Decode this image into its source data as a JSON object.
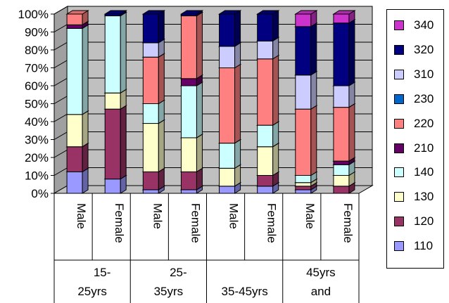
{
  "chart_data": {
    "type": "bar",
    "stacked": true,
    "percent_stacked": true,
    "three_d": true,
    "grid": true,
    "legend_position": "right",
    "ylim": [
      0,
      100
    ],
    "y_ticks": [
      "0%",
      "10%",
      "20%",
      "30%",
      "40%",
      "50%",
      "60%",
      "70%",
      "80%",
      "90%",
      "100%"
    ],
    "categories": [
      "Male",
      "Female",
      "Male",
      "Female",
      "Male",
      "Female",
      "Male",
      "Female"
    ],
    "groups": [
      {
        "label": "15-25yrs",
        "label_lines": [
          "15-",
          "25yrs"
        ]
      },
      {
        "label": "25-35yrs",
        "label_lines": [
          "25-",
          "35yrs"
        ]
      },
      {
        "label": "35-45yrs",
        "label_lines": [
          "",
          "35-45yrs"
        ]
      },
      {
        "label": "45yrs and",
        "label_lines": [
          "45yrs",
          "and"
        ]
      }
    ],
    "series": [
      {
        "name": "110",
        "color": "#9999FF",
        "values": [
          12,
          8,
          2,
          2,
          4,
          4,
          2,
          0
        ]
      },
      {
        "name": "120",
        "color": "#993366",
        "values": [
          14,
          39,
          10,
          10,
          0,
          6,
          2,
          4
        ]
      },
      {
        "name": "130",
        "color": "#FFFFCC",
        "values": [
          18,
          9,
          27,
          19,
          10,
          16,
          2,
          6
        ]
      },
      {
        "name": "140",
        "color": "#CCFFFF",
        "values": [
          48,
          43,
          11,
          29,
          14,
          12,
          4,
          6
        ]
      },
      {
        "name": "210",
        "color": "#660066",
        "values": [
          2,
          0,
          0,
          4,
          0,
          0,
          0,
          2
        ]
      },
      {
        "name": "220",
        "color": "#FF8080",
        "values": [
          6,
          0,
          26,
          35,
          42,
          37,
          37,
          30
        ]
      },
      {
        "name": "230",
        "color": "#0066CC",
        "values": [
          0,
          0,
          0,
          0,
          0,
          0,
          0,
          0
        ]
      },
      {
        "name": "310",
        "color": "#CCCCFF",
        "values": [
          0,
          0,
          8,
          0,
          12,
          10,
          19,
          12
        ]
      },
      {
        "name": "320",
        "color": "#000080",
        "values": [
          0,
          1,
          16,
          1,
          18,
          15,
          27,
          35
        ]
      },
      {
        "name": "340",
        "color": "#CC33CC",
        "values": [
          0,
          0,
          0,
          0,
          0,
          0,
          7,
          5
        ]
      }
    ]
  }
}
